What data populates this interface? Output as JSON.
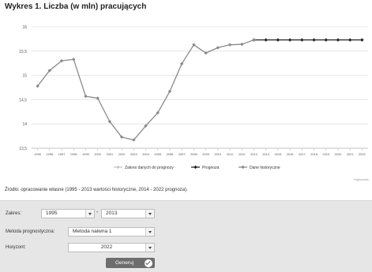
{
  "title": "Wykres 1. Liczba (w mln) pracujących",
  "chart_data": {
    "type": "line",
    "x": [
      "1995",
      "1996",
      "1997",
      "1998",
      "1999",
      "2000",
      "2001",
      "2002",
      "2003",
      "2004",
      "2005",
      "2006",
      "2007",
      "2008",
      "2009",
      "2010",
      "2011",
      "2012",
      "2013",
      "2014",
      "2015",
      "2016",
      "2017",
      "2018",
      "2019",
      "2020",
      "2021",
      "2022"
    ],
    "ylim": [
      13.5,
      16
    ],
    "yticks": [
      "13.5",
      "14",
      "14.5",
      "15",
      "15.5",
      "16"
    ],
    "grid": true,
    "legend_position": "bottom-center",
    "series": [
      {
        "name": "Zakres danych do prognozy",
        "color": "#c6c6c6",
        "values": [
          null,
          null,
          null,
          null,
          null,
          null,
          null,
          null,
          null,
          null,
          null,
          null,
          null,
          null,
          null,
          null,
          null,
          null,
          null,
          null,
          null,
          null,
          null,
          null,
          null,
          null,
          null,
          null
        ]
      },
      {
        "name": "Prognoza",
        "color": "#222222",
        "values": [
          null,
          null,
          null,
          null,
          null,
          null,
          null,
          null,
          null,
          null,
          null,
          null,
          null,
          null,
          null,
          null,
          null,
          null,
          15.73,
          15.73,
          15.73,
          15.73,
          15.73,
          15.73,
          15.73,
          15.73,
          15.73,
          15.73
        ]
      },
      {
        "name": "Dane historyczne",
        "color": "#8a8a8a",
        "values": [
          14.78,
          15.1,
          15.3,
          15.33,
          14.57,
          14.53,
          14.05,
          13.73,
          13.67,
          13.96,
          14.23,
          14.67,
          15.24,
          15.63,
          15.46,
          15.57,
          15.63,
          15.64,
          15.73,
          null,
          null,
          null,
          null,
          null,
          null,
          null,
          null,
          null
        ]
      }
    ]
  },
  "credit": "Highcharts",
  "source": "Źródło: opracowanie własne (1995 - 2013 wartości historyczne, 2014 - 2022 prognoza).",
  "form": {
    "range_label": "Zakres:",
    "range_from": "1995",
    "range_to": "2013",
    "method_label": "Metoda prognostyczna:",
    "method_value": "Metoda naiwna 1",
    "horizon_label": "Horyzont:",
    "horizon_value": "2022",
    "submit_label": "Generuj"
  }
}
